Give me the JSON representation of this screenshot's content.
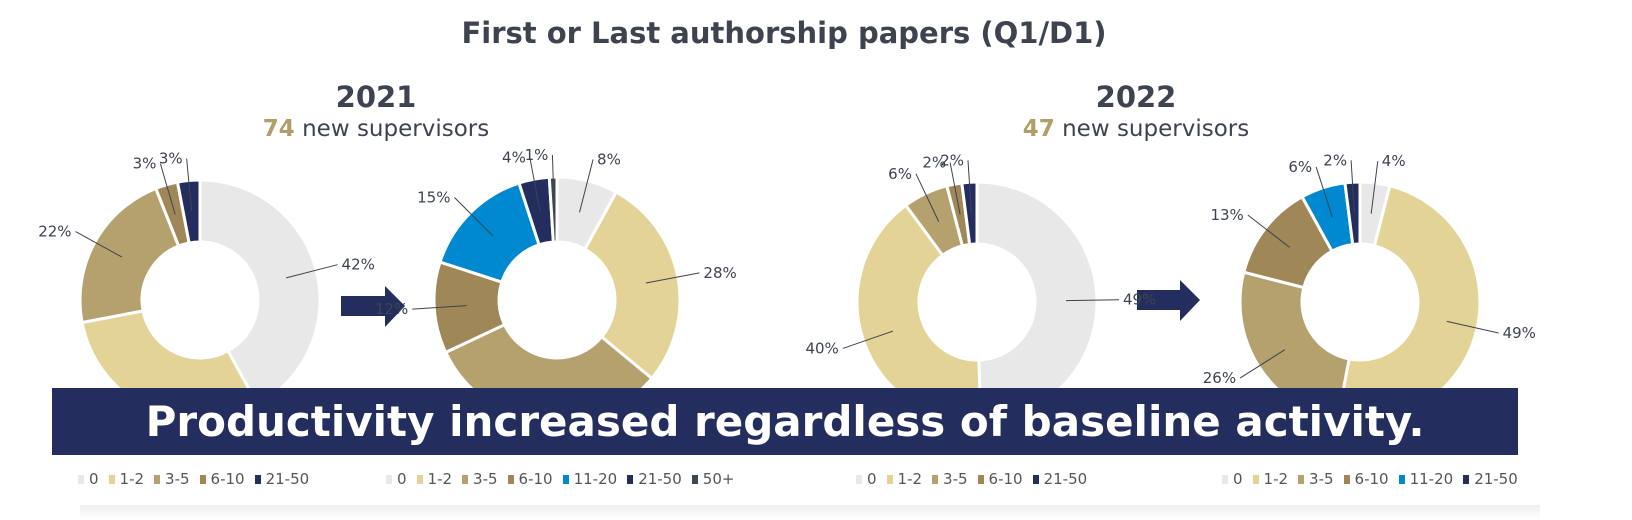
{
  "title": "First or Last authorship papers (Q1/D1)",
  "groups": [
    {
      "year": "2021",
      "count": "74",
      "count_label": "new supervisors"
    },
    {
      "year": "2022",
      "count": "47",
      "count_label": "new supervisors"
    }
  ],
  "banner": "Productivity increased regardless of baseline activity.",
  "colors": {
    "0": "#e8e8e8",
    "1-2": "#e3d396",
    "3-5": "#b5a16d",
    "6-10": "#a08758",
    "11-20": "#0089d0",
    "21-50": "#232e5f",
    "50+": "#3d4850"
  },
  "chart_data": [
    {
      "type": "pie",
      "donut": true,
      "group": "2021",
      "stage": "before",
      "categories": [
        "0",
        "1-2",
        "3-5",
        "6-10",
        "21-50"
      ],
      "values": [
        42,
        30,
        22,
        3,
        3
      ],
      "labels": [
        "42%",
        "",
        "22%",
        "3%",
        "3%"
      ],
      "legend": [
        "0",
        "1-2",
        "3-5",
        "6-10",
        "21-50"
      ]
    },
    {
      "type": "pie",
      "donut": true,
      "group": "2021",
      "stage": "after",
      "categories": [
        "0",
        "1-2",
        "3-5",
        "6-10",
        "11-20",
        "21-50",
        "50+"
      ],
      "values": [
        8,
        28,
        32,
        12,
        15,
        4,
        1
      ],
      "labels": [
        "8%",
        "28%",
        "",
        "12%",
        "15%",
        "4%",
        "1%"
      ],
      "legend": [
        "0",
        "1-2",
        "3-5",
        "6-10",
        "11-20",
        "21-50",
        "50+"
      ]
    },
    {
      "type": "pie",
      "donut": true,
      "group": "2022",
      "stage": "before",
      "categories": [
        "0",
        "1-2",
        "3-5",
        "6-10",
        "21-50"
      ],
      "values": [
        49,
        40,
        6,
        2,
        2
      ],
      "labels": [
        "49%",
        "40%",
        "6%",
        "2%",
        "2%"
      ],
      "legend": [
        "0",
        "1-2",
        "3-5",
        "6-10",
        "21-50"
      ]
    },
    {
      "type": "pie",
      "donut": true,
      "group": "2022",
      "stage": "after",
      "categories": [
        "0",
        "1-2",
        "3-5",
        "6-10",
        "11-20",
        "21-50"
      ],
      "values": [
        4,
        49,
        26,
        13,
        6,
        2
      ],
      "labels": [
        "4%",
        "49%",
        "26%",
        "13%",
        "6%",
        "2%"
      ],
      "legend": [
        "0",
        "1-2",
        "3-5",
        "6-10",
        "11-20",
        "21-50"
      ]
    }
  ]
}
